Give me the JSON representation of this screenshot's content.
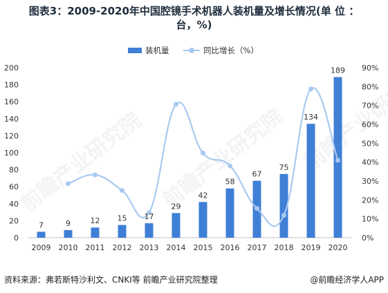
{
  "title_line1": "图表3：2009-2020年中国腔镜手术机器人装机量及增长情况(单 位 ：",
  "title_line2": "台，%)",
  "legend": {
    "bar_label": "装机量",
    "line_label": "同比增长（%）"
  },
  "footer": {
    "source": "资料来源：弗若斯特沙利文、CNKI等 前瞻产业研究院整理",
    "brand": "@前瞻经济学人APP"
  },
  "watermark_text": "前瞻产业研究院",
  "chart_data": {
    "type": "bar",
    "categories": [
      "2009",
      "2010",
      "2011",
      "2012",
      "2013",
      "2014",
      "2015",
      "2016",
      "2017",
      "2018",
      "2019",
      "2020"
    ],
    "series": [
      {
        "type": "bar",
        "axis": "left",
        "values": [
          7,
          9,
          12,
          15,
          17,
          29,
          42,
          58,
          67,
          75,
          134,
          189
        ],
        "color": "#3f7fd6"
      },
      {
        "type": "line",
        "axis": "right",
        "values": [
          null,
          28.6,
          33.3,
          25.0,
          13.3,
          70.6,
          44.8,
          38.1,
          15.5,
          11.9,
          78.7,
          41.0
        ],
        "color": "#a9c9f0"
      }
    ],
    "left_axis": {
      "ylim": [
        0,
        200
      ],
      "ticks": [
        "0",
        "20",
        "40",
        "60",
        "80",
        "100",
        "120",
        "140",
        "160",
        "180",
        "200"
      ]
    },
    "right_axis": {
      "ylim": [
        0,
        90
      ],
      "ticks": [
        "0%",
        "10%",
        "20%",
        "30%",
        "40%",
        "50%",
        "60%",
        "70%",
        "80%",
        "90%"
      ]
    },
    "data_labels": true,
    "grid": false,
    "legend_position": "top-center"
  }
}
